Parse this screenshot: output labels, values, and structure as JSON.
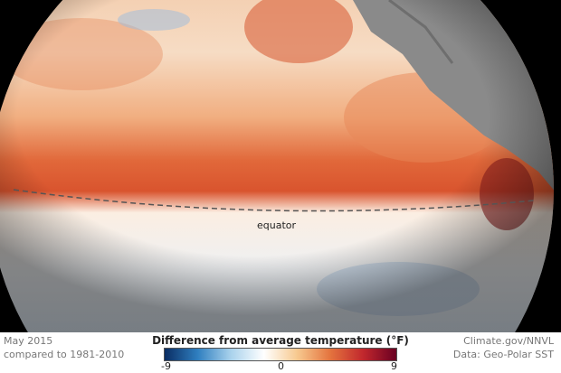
{
  "map": {
    "equator_label": "equator",
    "colors": {
      "land": "#8a8a8a",
      "ocean_warm": "#e0703a",
      "ocean_cool": "#8fb3d9",
      "background": "#000000"
    }
  },
  "footer": {
    "date": "May 2015",
    "baseline": "compared to 1981-2010",
    "credit": "Climate.gov/NNVL",
    "source": "Data: Geo-Polar SST"
  },
  "legend": {
    "title": "Difference from average temperature (°F)",
    "ticks": [
      "-9",
      "0",
      "9"
    ],
    "colors": [
      "#0a2d63",
      "#2f7fc0",
      "#a9d2ec",
      "#ffffff",
      "#f7c98f",
      "#e4743e",
      "#c1272d",
      "#6a0022"
    ]
  }
}
